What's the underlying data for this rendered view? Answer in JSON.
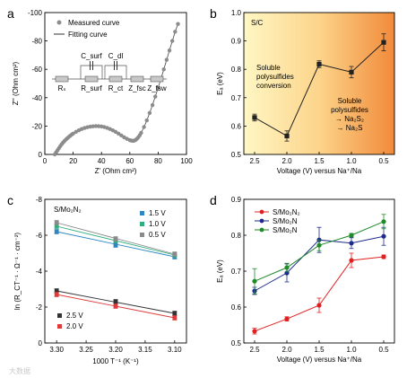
{
  "chart_data": [
    {
      "panel": "a",
      "type": "scatter",
      "xlabel": "Z' (Ohm cm²)",
      "ylabel": "Z'' (Ohm cm²)",
      "xlim": [
        0,
        100
      ],
      "ylim": [
        0,
        -100
      ],
      "xticks": [
        "0",
        "20",
        "40",
        "60",
        "80",
        "100"
      ],
      "yticks": [
        "0",
        "-20",
        "-40",
        "-60",
        "-80",
        "-100"
      ],
      "legend": [
        "Measured curve",
        "Fitting curve"
      ],
      "circuit_labels": [
        "Rₛ",
        "R_surf",
        "R_ct",
        "Z_fsc",
        "Z_fsw",
        "C_surf",
        "C_dl"
      ],
      "series": [
        {
          "name": "Measured curve",
          "x": [
            7,
            8,
            9,
            10,
            11,
            12,
            13,
            14,
            15,
            16,
            17,
            18,
            19,
            20,
            22,
            24,
            26,
            28,
            30,
            32,
            34,
            36,
            38,
            40,
            42,
            44,
            46,
            48,
            50,
            52,
            54,
            56,
            58,
            60,
            61,
            62,
            63,
            64,
            65,
            66,
            67,
            68,
            70,
            72,
            74,
            76,
            78,
            80,
            82,
            84,
            86,
            88,
            90,
            92,
            94
          ],
          "y": [
            0,
            -1.5,
            -3,
            -4.5,
            -6,
            -7.3,
            -8.5,
            -9.6,
            -10.6,
            -11.5,
            -12.4,
            -13.2,
            -14,
            -14.7,
            -15.9,
            -17,
            -17.9,
            -18.6,
            -19.2,
            -19.6,
            -19.8,
            -20,
            -19.9,
            -19.7,
            -19.3,
            -18.7,
            -17.9,
            -17,
            -15.9,
            -14.7,
            -13.4,
            -12.1,
            -11,
            -10.1,
            -9.8,
            -9.6,
            -9.7,
            -10.2,
            -11,
            -12.1,
            -13.5,
            -15.2,
            -19.3,
            -24,
            -29.2,
            -34.8,
            -40.8,
            -47,
            -53.5,
            -60,
            -66.7,
            -73.3,
            -80,
            -86.5,
            -92
          ]
        }
      ]
    },
    {
      "panel": "b",
      "type": "line",
      "title": "S/C",
      "xlabel": "Voltage (V) versus Na⁺/Na",
      "ylabel": "Eₐ (eV)",
      "categories": [
        "2.5",
        "2.0",
        "1.5",
        "1.0",
        "0.5"
      ],
      "ylim": [
        0.5,
        1.0
      ],
      "yticks": [
        "0.5",
        "0.6",
        "0.7",
        "0.8",
        "0.9",
        "1.0"
      ],
      "annotations": {
        "left": [
          "Soluble",
          "polysulfides",
          "conversion"
        ],
        "right": [
          "Soluble",
          "polysulfides",
          "→ Na₂S₂",
          "→ Na₂S"
        ]
      },
      "series": [
        {
          "name": "S/C",
          "values": [
            0.63,
            0.565,
            0.818,
            0.79,
            0.895
          ],
          "err": [
            0.012,
            0.018,
            0.012,
            0.02,
            0.03
          ]
        }
      ]
    },
    {
      "panel": "c",
      "type": "scatter",
      "title": "S/Mo₂N₂",
      "xlabel": "1000 T⁻¹ (K⁻¹)",
      "ylabel": "ln (R_CT⁻¹ · Ω⁻¹ · cm⁻²)",
      "xlim": [
        3.3,
        3.1
      ],
      "ylim": [
        0,
        -8
      ],
      "xticks": [
        "3.30",
        "3.25",
        "3.20",
        "3.15",
        "3.10"
      ],
      "yticks": [
        "0",
        "-2",
        "-4",
        "-6",
        "-8"
      ],
      "series": [
        {
          "name": "1.5 V",
          "x": [
            3.3,
            3.2,
            3.1
          ],
          "y": [
            -6.2,
            -5.45,
            -4.8
          ]
        },
        {
          "name": "1.0 V",
          "x": [
            3.3,
            3.2,
            3.1
          ],
          "y": [
            -6.5,
            -5.7,
            -4.9
          ]
        },
        {
          "name": "0.5 V",
          "x": [
            3.3,
            3.2,
            3.1
          ],
          "y": [
            -6.7,
            -5.8,
            -4.95
          ]
        },
        {
          "name": "2.5 V",
          "x": [
            3.3,
            3.2,
            3.1
          ],
          "y": [
            -2.9,
            -2.3,
            -1.65
          ]
        },
        {
          "name": "2.0 V",
          "x": [
            3.3,
            3.2,
            3.1
          ],
          "y": [
            -2.7,
            -2.05,
            -1.4
          ]
        }
      ]
    },
    {
      "panel": "d",
      "type": "line",
      "xlabel": "Voltage (V) versus Na⁺/Na",
      "ylabel": "Eₐ (eV)",
      "categories": [
        "2.5",
        "2.0",
        "1.5",
        "1.0",
        "0.5"
      ],
      "ylim": [
        0.5,
        0.9
      ],
      "yticks": [
        "0.5",
        "0.6",
        "0.7",
        "0.8",
        "0.9"
      ],
      "series": [
        {
          "name": "S/Mo₂N₂",
          "values": [
            0.533,
            0.567,
            0.605,
            0.73,
            0.74
          ],
          "err": [
            0.008,
            0.006,
            0.02,
            0.02,
            0.005
          ]
        },
        {
          "name": "S/Mo₂N",
          "values": [
            0.645,
            0.695,
            0.787,
            0.778,
            0.797
          ],
          "err": [
            0.01,
            0.025,
            0.035,
            0.015,
            0.025
          ]
        },
        {
          "name": "S/Mo₂N",
          "values": [
            0.672,
            0.71,
            0.772,
            0.8,
            0.838
          ],
          "err": [
            0.035,
            0.012,
            0.015,
            0.005,
            0.02
          ]
        }
      ]
    }
  ],
  "colors": {
    "a": "#8c8c8c",
    "b": "#222222",
    "c": [
      "#2e86c1",
      "#2fae7d",
      "#8a8a8a",
      "#333333",
      "#e03a3a"
    ],
    "d": [
      "#e02020",
      "#1e2a8c",
      "#1e8a28"
    ]
  },
  "watermark": "大数据"
}
